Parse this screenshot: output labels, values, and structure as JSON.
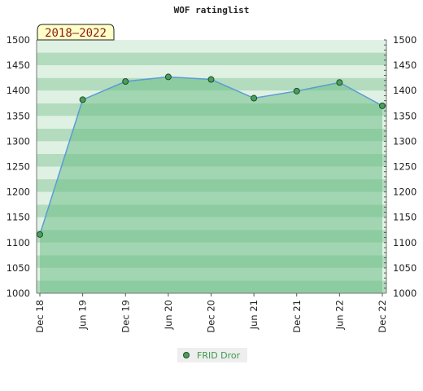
{
  "chart_data": {
    "type": "area",
    "title": "WOF ratinglist",
    "period_label": "2018–2022",
    "x": [
      "Dec 18",
      "Jun 19",
      "Dec 19",
      "Jun 20",
      "Dec 20",
      "Jun 21",
      "Dec 21",
      "Jun 22",
      "Dec 22"
    ],
    "series": [
      {
        "name": "FRID Dror",
        "values": [
          1116,
          1382,
          1418,
          1427,
          1422,
          1385,
          1399,
          1416,
          1370
        ]
      }
    ],
    "ylim": [
      1000,
      1500
    ],
    "yticks": [
      1000,
      1050,
      1100,
      1150,
      1200,
      1250,
      1300,
      1350,
      1400,
      1450,
      1500
    ],
    "ylabel": "",
    "xlabel": "",
    "grid": true,
    "legend_position": "bottom-center",
    "colors": {
      "line": "#5b9bd5",
      "area": "#6fbf8a",
      "marker": "#4a9e5c",
      "band_light": "#dff1e3",
      "band_dark": "#b2dcbd",
      "legend_text": "#3a9a4a",
      "period_bg": "#ffffc8"
    }
  }
}
